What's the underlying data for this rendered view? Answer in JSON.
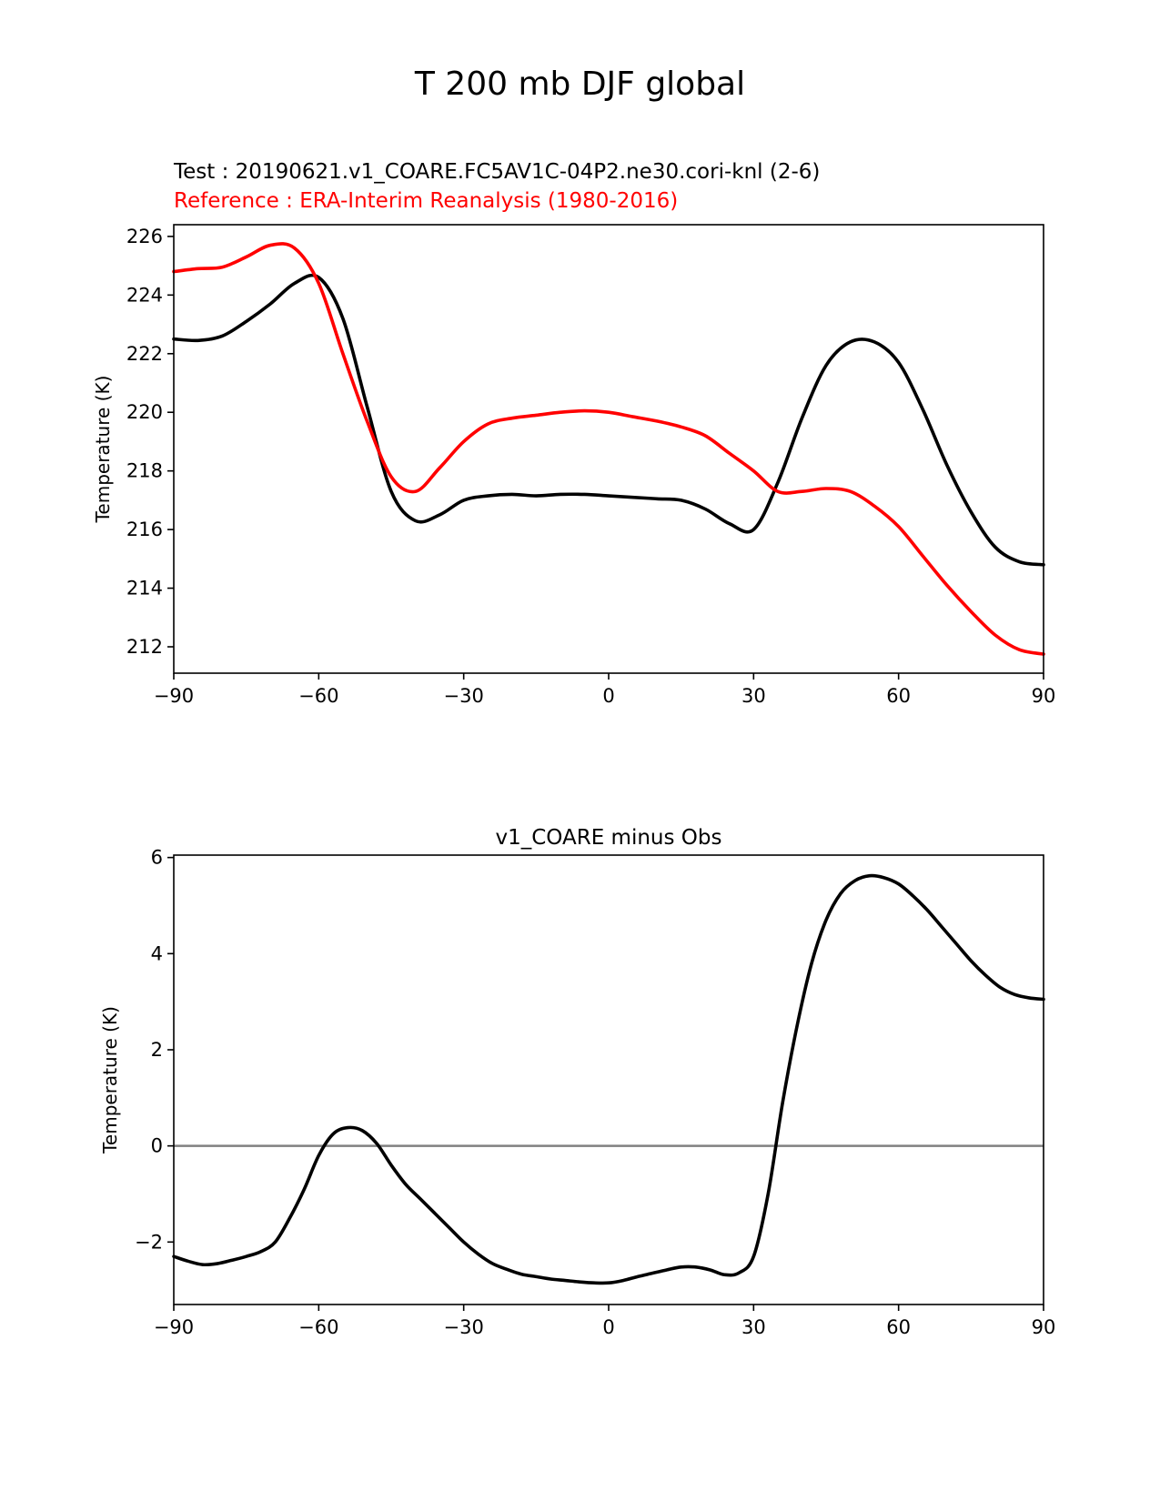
{
  "figure_title": "T 200 mb DJF global",
  "chart_data": [
    {
      "type": "line",
      "title_test": "Test : 20190621.v1_COARE.FC5AV1C-04P2.ne30.cori-knl (2-6)",
      "title_reference": "Reference : ERA-Interim Reanalysis (1980-2016)",
      "xlabel": "",
      "ylabel": "Temperature (K)",
      "xlim": [
        -90,
        90
      ],
      "ylim": [
        211.1,
        226.4
      ],
      "xticks": [
        -90,
        -60,
        -30,
        0,
        30,
        60,
        90
      ],
      "xtick_labels": [
        "−90",
        "−60",
        "−30",
        "0",
        "30",
        "60",
        "90"
      ],
      "yticks": [
        212,
        214,
        216,
        218,
        220,
        222,
        224,
        226
      ],
      "ytick_labels": [
        "212",
        "214",
        "216",
        "218",
        "220",
        "222",
        "224",
        "226"
      ],
      "series": [
        {
          "name": "Test",
          "color": "#000000",
          "x": [
            -90,
            -85,
            -80,
            -75,
            -70,
            -65,
            -60,
            -55,
            -50,
            -45,
            -40,
            -35,
            -30,
            -25,
            -20,
            -15,
            -10,
            -5,
            0,
            5,
            10,
            15,
            20,
            25,
            30,
            35,
            40,
            45,
            50,
            55,
            60,
            65,
            70,
            75,
            80,
            85,
            90
          ],
          "values": [
            222.5,
            222.45,
            222.6,
            223.1,
            223.7,
            224.4,
            224.6,
            223.2,
            220.2,
            217.3,
            216.3,
            216.5,
            217.0,
            217.15,
            217.2,
            217.15,
            217.2,
            217.2,
            217.15,
            217.1,
            217.05,
            217.0,
            216.7,
            216.2,
            216.0,
            217.6,
            219.8,
            221.6,
            222.4,
            222.4,
            221.7,
            220.1,
            218.2,
            216.6,
            215.4,
            214.9,
            214.8
          ]
        },
        {
          "name": "Reference",
          "color": "#ff0000",
          "x": [
            -90,
            -85,
            -80,
            -75,
            -70,
            -65,
            -60,
            -55,
            -50,
            -45,
            -40,
            -35,
            -30,
            -25,
            -20,
            -15,
            -10,
            -5,
            0,
            5,
            10,
            15,
            20,
            25,
            30,
            35,
            40,
            45,
            50,
            55,
            60,
            65,
            70,
            75,
            80,
            85,
            90
          ],
          "values": [
            224.8,
            224.9,
            224.95,
            225.3,
            225.7,
            225.6,
            224.4,
            222.0,
            219.7,
            217.8,
            217.3,
            218.1,
            219.0,
            219.6,
            219.8,
            219.9,
            220.0,
            220.05,
            220.0,
            219.85,
            219.7,
            219.5,
            219.2,
            218.6,
            218.0,
            217.3,
            217.3,
            217.4,
            217.3,
            216.8,
            216.1,
            215.1,
            214.1,
            213.2,
            212.4,
            211.9,
            211.75
          ]
        }
      ]
    },
    {
      "type": "line",
      "title": "v1_COARE minus Obs",
      "xlabel": "",
      "ylabel": "Temperature (K)",
      "xlim": [
        -90,
        90
      ],
      "ylim": [
        -3.3,
        6.05
      ],
      "xticks": [
        -90,
        -60,
        -30,
        0,
        30,
        60,
        90
      ],
      "xtick_labels": [
        "−90",
        "−60",
        "−30",
        "0",
        "30",
        "60",
        "90"
      ],
      "yticks": [
        -2,
        0,
        2,
        4,
        6
      ],
      "ytick_labels": [
        "−2",
        "0",
        "2",
        "4",
        "6"
      ],
      "zero_line": {
        "value": 0,
        "color": "#808080"
      },
      "series": [
        {
          "name": "v1_COARE minus Obs",
          "color": "#000000",
          "x": [
            -90,
            -87,
            -84,
            -81,
            -78,
            -75,
            -72,
            -69,
            -66,
            -63,
            -60,
            -57,
            -54,
            -51,
            -48,
            -45,
            -42,
            -39,
            -36,
            -33,
            -30,
            -27,
            -24,
            -21,
            -18,
            -15,
            -12,
            -9,
            -6,
            -3,
            0,
            3,
            6,
            9,
            12,
            15,
            18,
            21,
            24,
            27,
            30,
            33,
            36,
            39,
            42,
            45,
            48,
            51,
            54,
            57,
            60,
            63,
            66,
            69,
            72,
            75,
            78,
            81,
            84,
            87,
            90
          ],
          "values": [
            -2.3,
            -2.4,
            -2.47,
            -2.45,
            -2.38,
            -2.3,
            -2.2,
            -2.0,
            -1.5,
            -0.9,
            -0.2,
            0.25,
            0.38,
            0.32,
            0.05,
            -0.4,
            -0.8,
            -1.1,
            -1.4,
            -1.7,
            -2.0,
            -2.25,
            -2.45,
            -2.57,
            -2.67,
            -2.72,
            -2.77,
            -2.8,
            -2.83,
            -2.85,
            -2.85,
            -2.8,
            -2.72,
            -2.65,
            -2.58,
            -2.52,
            -2.52,
            -2.58,
            -2.68,
            -2.64,
            -2.3,
            -1.0,
            0.9,
            2.5,
            3.8,
            4.7,
            5.25,
            5.52,
            5.62,
            5.58,
            5.45,
            5.2,
            4.9,
            4.55,
            4.2,
            3.85,
            3.55,
            3.3,
            3.15,
            3.08,
            3.05
          ]
        }
      ]
    }
  ]
}
